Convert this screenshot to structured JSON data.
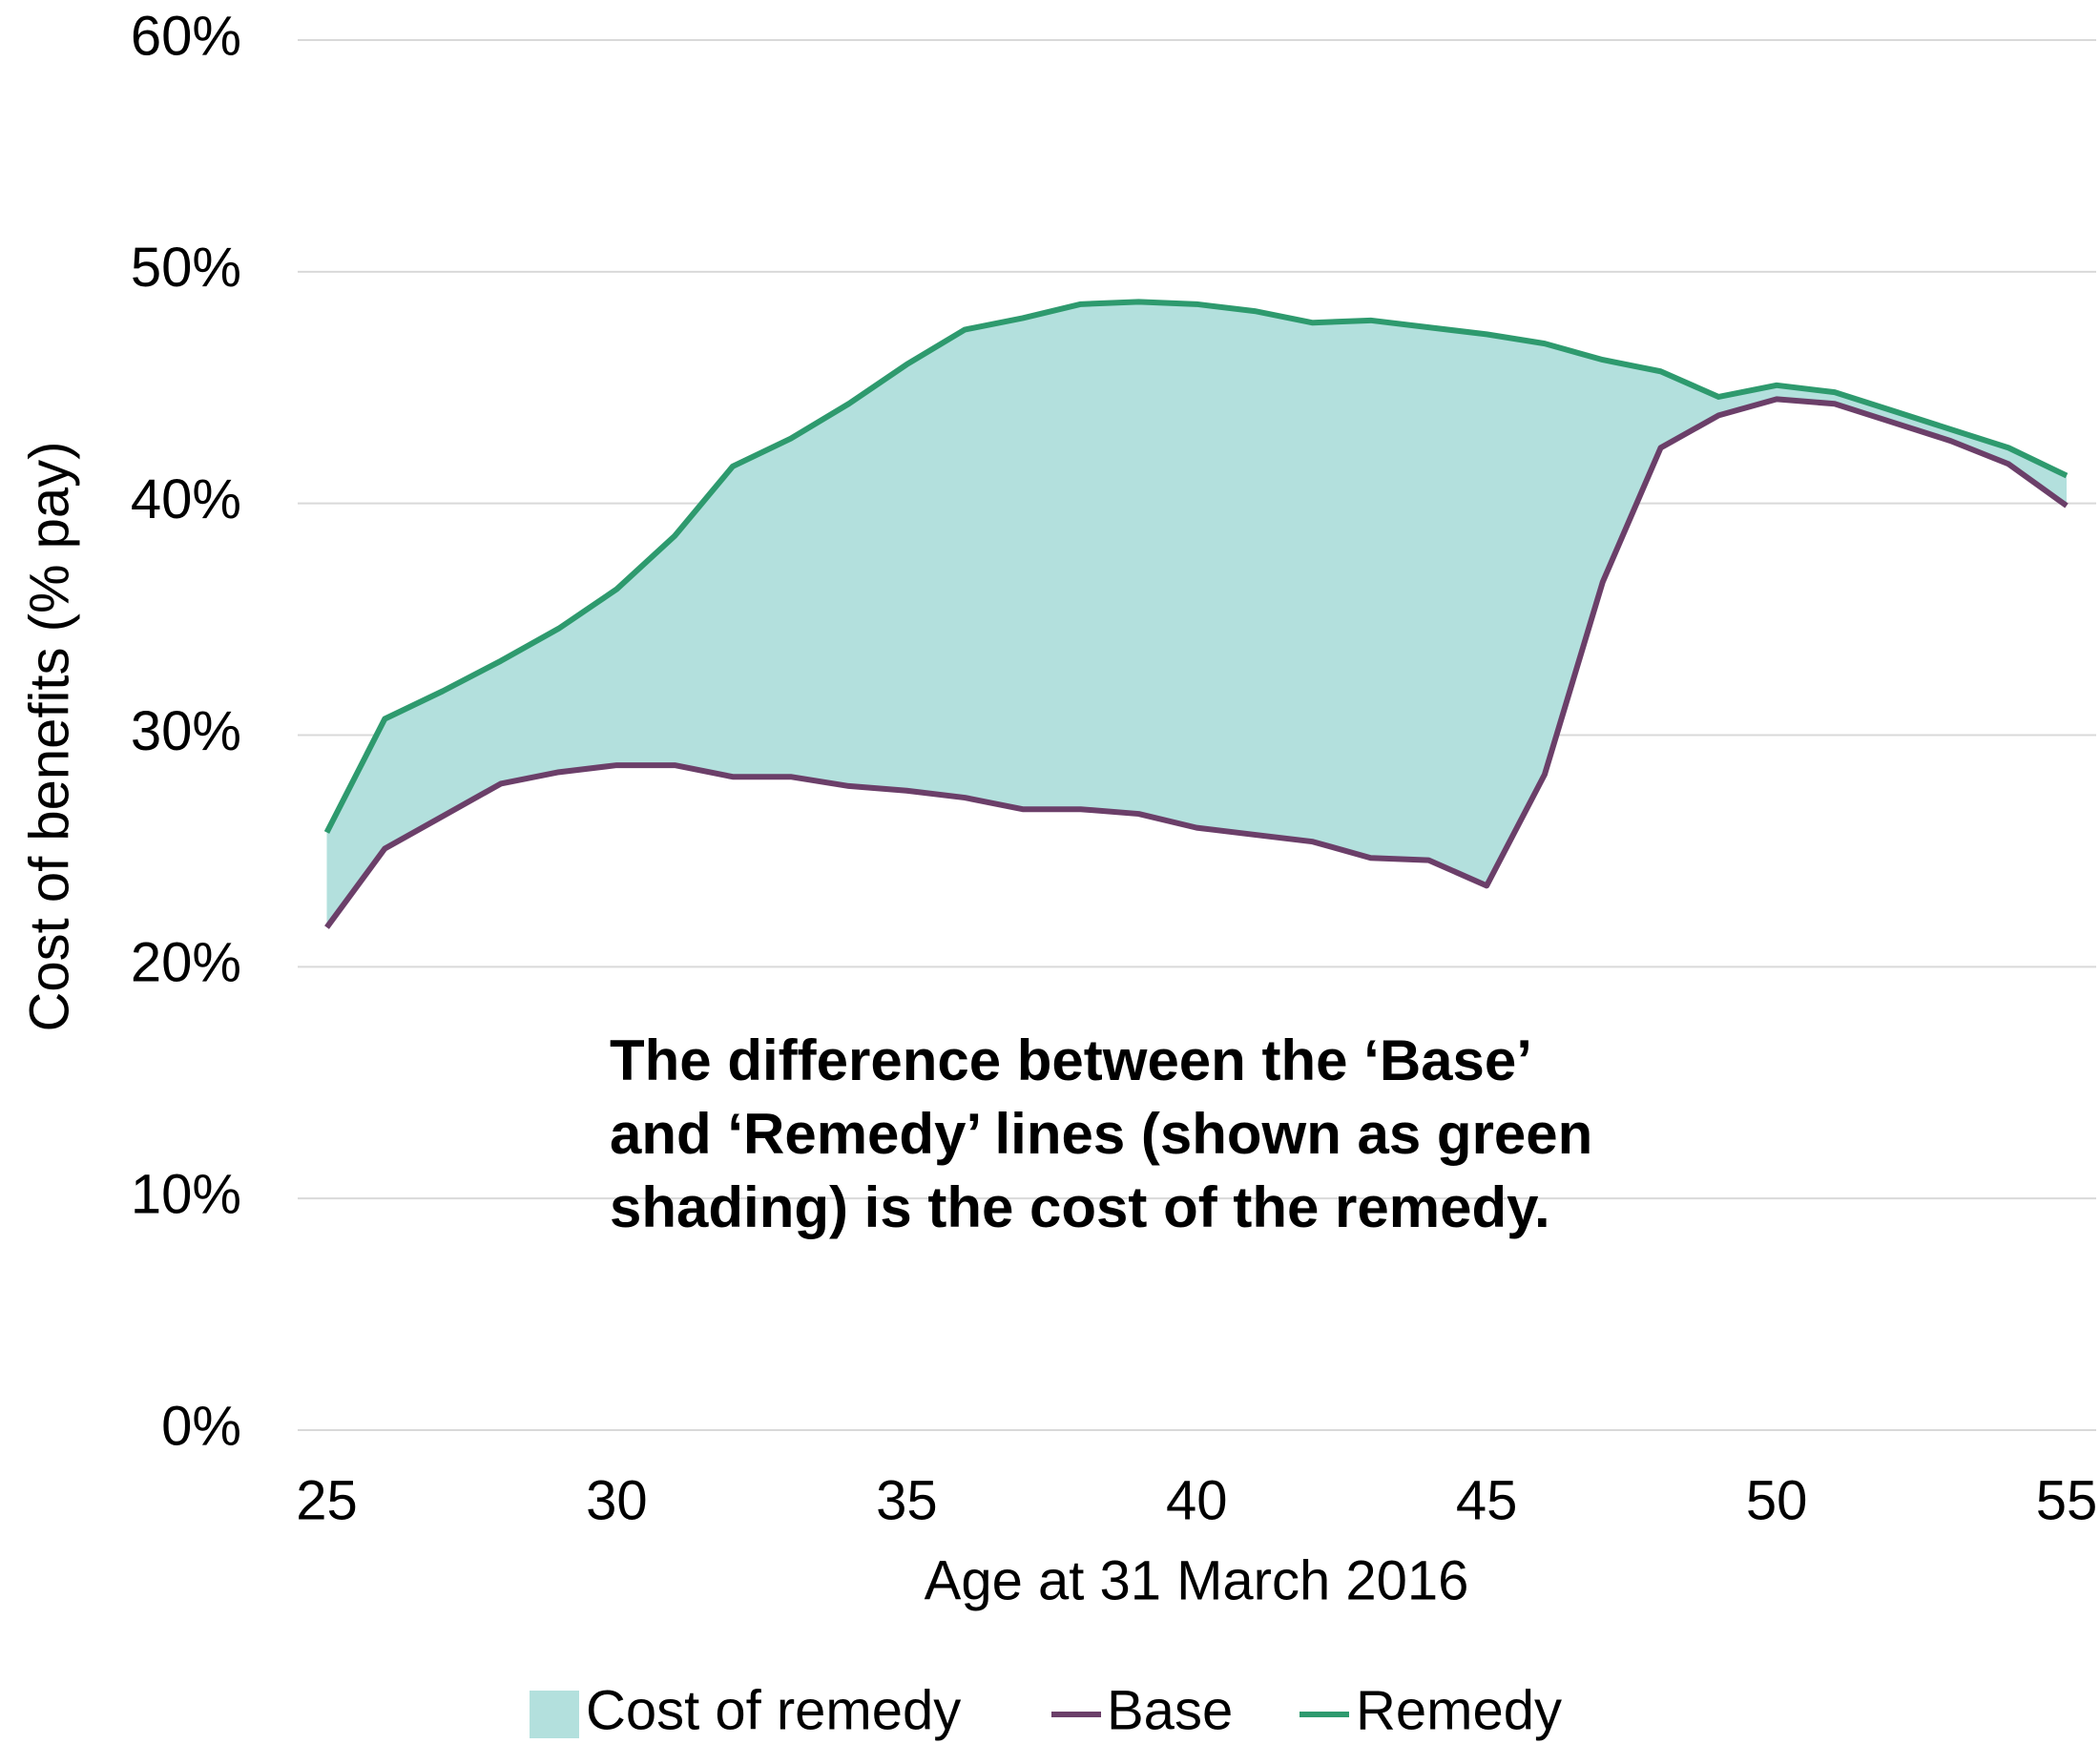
{
  "chart_data": {
    "type": "line",
    "x_label": "Age at 31 March 2016",
    "y_label": "Cost of benefits (% pay)",
    "annotation": [
      "The difference between the ‘Base’",
      "and ‘Remedy’ lines (shown as green",
      "shading) is the cost of the remedy."
    ],
    "x": [
      25,
      26,
      27,
      28,
      29,
      30,
      31,
      32,
      33,
      34,
      35,
      36,
      37,
      38,
      39,
      40,
      41,
      42,
      43,
      44,
      45,
      46,
      47,
      48,
      49,
      50,
      51,
      52,
      53,
      54,
      55
    ],
    "fill": {
      "name": "Cost of remedy",
      "color": "#b3e0dd"
    },
    "series": [
      {
        "name": "Base",
        "color": "#6b3f69",
        "values": [
          21.7,
          25.1,
          26.5,
          27.9,
          28.4,
          28.7,
          28.7,
          28.2,
          28.2,
          27.8,
          27.6,
          27.3,
          26.8,
          26.8,
          26.6,
          26.0,
          25.7,
          25.4,
          24.7,
          24.6,
          23.5,
          28.3,
          36.6,
          42.4,
          43.8,
          44.5,
          44.3,
          43.5,
          42.7,
          41.7,
          39.9
        ]
      },
      {
        "name": "Remedy",
        "color": "#2e9a6e",
        "values": [
          25.8,
          30.7,
          31.9,
          33.2,
          34.6,
          36.3,
          38.6,
          41.6,
          42.8,
          44.3,
          46.0,
          47.5,
          48.0,
          48.6,
          48.7,
          48.6,
          48.3,
          47.8,
          47.9,
          47.6,
          47.3,
          46.9,
          46.2,
          45.7,
          44.6,
          45.1,
          44.8,
          44.0,
          43.2,
          42.4,
          41.2
        ]
      }
    ],
    "xlim": [
      25,
      55
    ],
    "xticks": [
      25,
      30,
      35,
      40,
      45,
      50,
      55
    ],
    "ylim": [
      0,
      60
    ],
    "yticks": [
      {
        "value": 0,
        "label": "0%"
      },
      {
        "value": 10,
        "label": "10%"
      },
      {
        "value": 20,
        "label": "20%"
      },
      {
        "value": 30,
        "label": "30%"
      },
      {
        "value": 40,
        "label": "40%"
      },
      {
        "value": 50,
        "label": "50%"
      },
      {
        "value": 60,
        "label": "60%"
      }
    ],
    "grid": true
  }
}
